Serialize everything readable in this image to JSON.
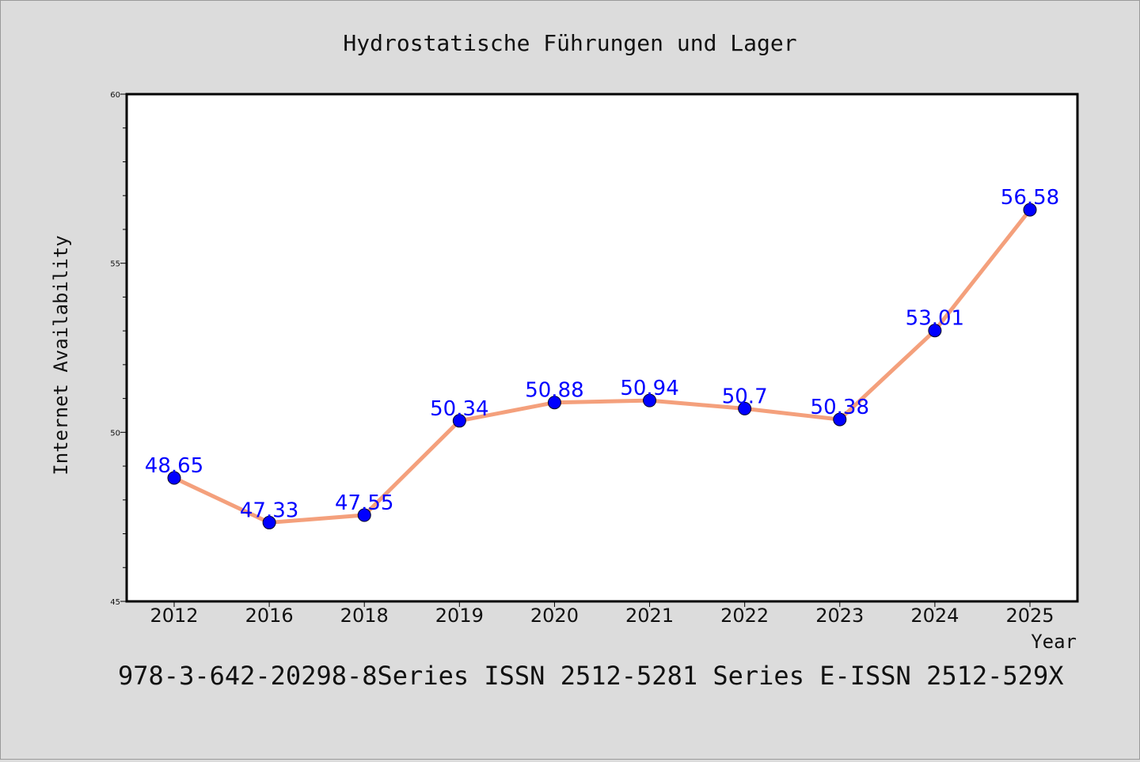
{
  "chart_data": {
    "type": "line",
    "title": "Hydrostatische Führungen und Lager",
    "xlabel": "Year",
    "ylabel": "Internet Availability",
    "categories": [
      "2012",
      "2016",
      "2018",
      "2019",
      "2020",
      "2021",
      "2022",
      "2023",
      "2024",
      "2025"
    ],
    "series": [
      {
        "values": [
          48.65,
          47.33,
          47.55,
          50.34,
          50.88,
          50.94,
          50.7,
          50.38,
          53.01,
          56.58
        ],
        "labels": [
          "48.65",
          "47.33",
          "47.55",
          "50.34",
          "50.88",
          "50.94",
          "50.7",
          "50.38",
          "53.01",
          "56.58"
        ]
      }
    ],
    "ylim": [
      45,
      60
    ],
    "yticks": [
      "45",
      "50",
      "55",
      "60"
    ],
    "grid": false,
    "line_color": "#f4a07c",
    "marker_color": "#0000ff",
    "label_color": "#0000ff"
  },
  "footer_text": "978-3-642-20298-8Series ISSN 2512-5281 Series E-ISSN 2512-529X"
}
